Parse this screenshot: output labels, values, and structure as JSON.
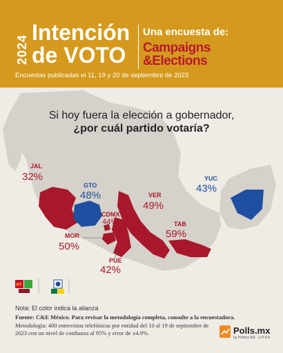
{
  "header": {
    "year": "2024",
    "title_line1": "Intención",
    "title_line2": "de VOTO",
    "survey_label": "Una encuesta de:",
    "brand_line1": "Campaigns",
    "brand_line2": "&Elections",
    "dates": "Encuestas publicadas el 11, 19 y 20 de septiembre de 2023"
  },
  "question": {
    "line1": "Si hoy fuera la elección a gobernador,",
    "line2": "¿por cuál partido votaría?"
  },
  "states": [
    {
      "code": "JAL",
      "value": "32%",
      "alliance": "red"
    },
    {
      "code": "GTO",
      "value": "48%",
      "alliance": "blue"
    },
    {
      "code": "CDMX",
      "value": "44%",
      "alliance": "red"
    },
    {
      "code": "VER",
      "value": "49%",
      "alliance": "red"
    },
    {
      "code": "YUC",
      "value": "43%",
      "alliance": "blue"
    },
    {
      "code": "TAB",
      "value": "59%",
      "alliance": "red"
    },
    {
      "code": "MOR",
      "value": "50%",
      "alliance": "red"
    },
    {
      "code": "PUE",
      "value": "42%",
      "alliance": "red"
    }
  ],
  "colors": {
    "header_bg": "#d59a1d",
    "red_alliance": "#a8182a",
    "blue_alliance": "#1f4fa0",
    "land": "#d6d1ca",
    "background": "#efece6"
  },
  "party_logos": {
    "red_alliance_labels": [
      "PT",
      "PVEM",
      "MORENA"
    ],
    "blue_alliance_labels": [
      "PAN",
      "PRI",
      "PRD"
    ]
  },
  "footer": {
    "note": "Nota: El color indica la alianza",
    "source": "Fuente: C&E México. Para revisar la metodología completa, consulte a la encuestadora.",
    "methodology": "Metodología: 400 entrevistas telefónicas por entidad del 10 al 19 de septiembre de 2023 con un nivel de confianza al 95% y error de ±4.9%."
  },
  "pollsmx": {
    "name": "Polls.mx",
    "tagline": "by Política MX  ·  U P A A"
  }
}
